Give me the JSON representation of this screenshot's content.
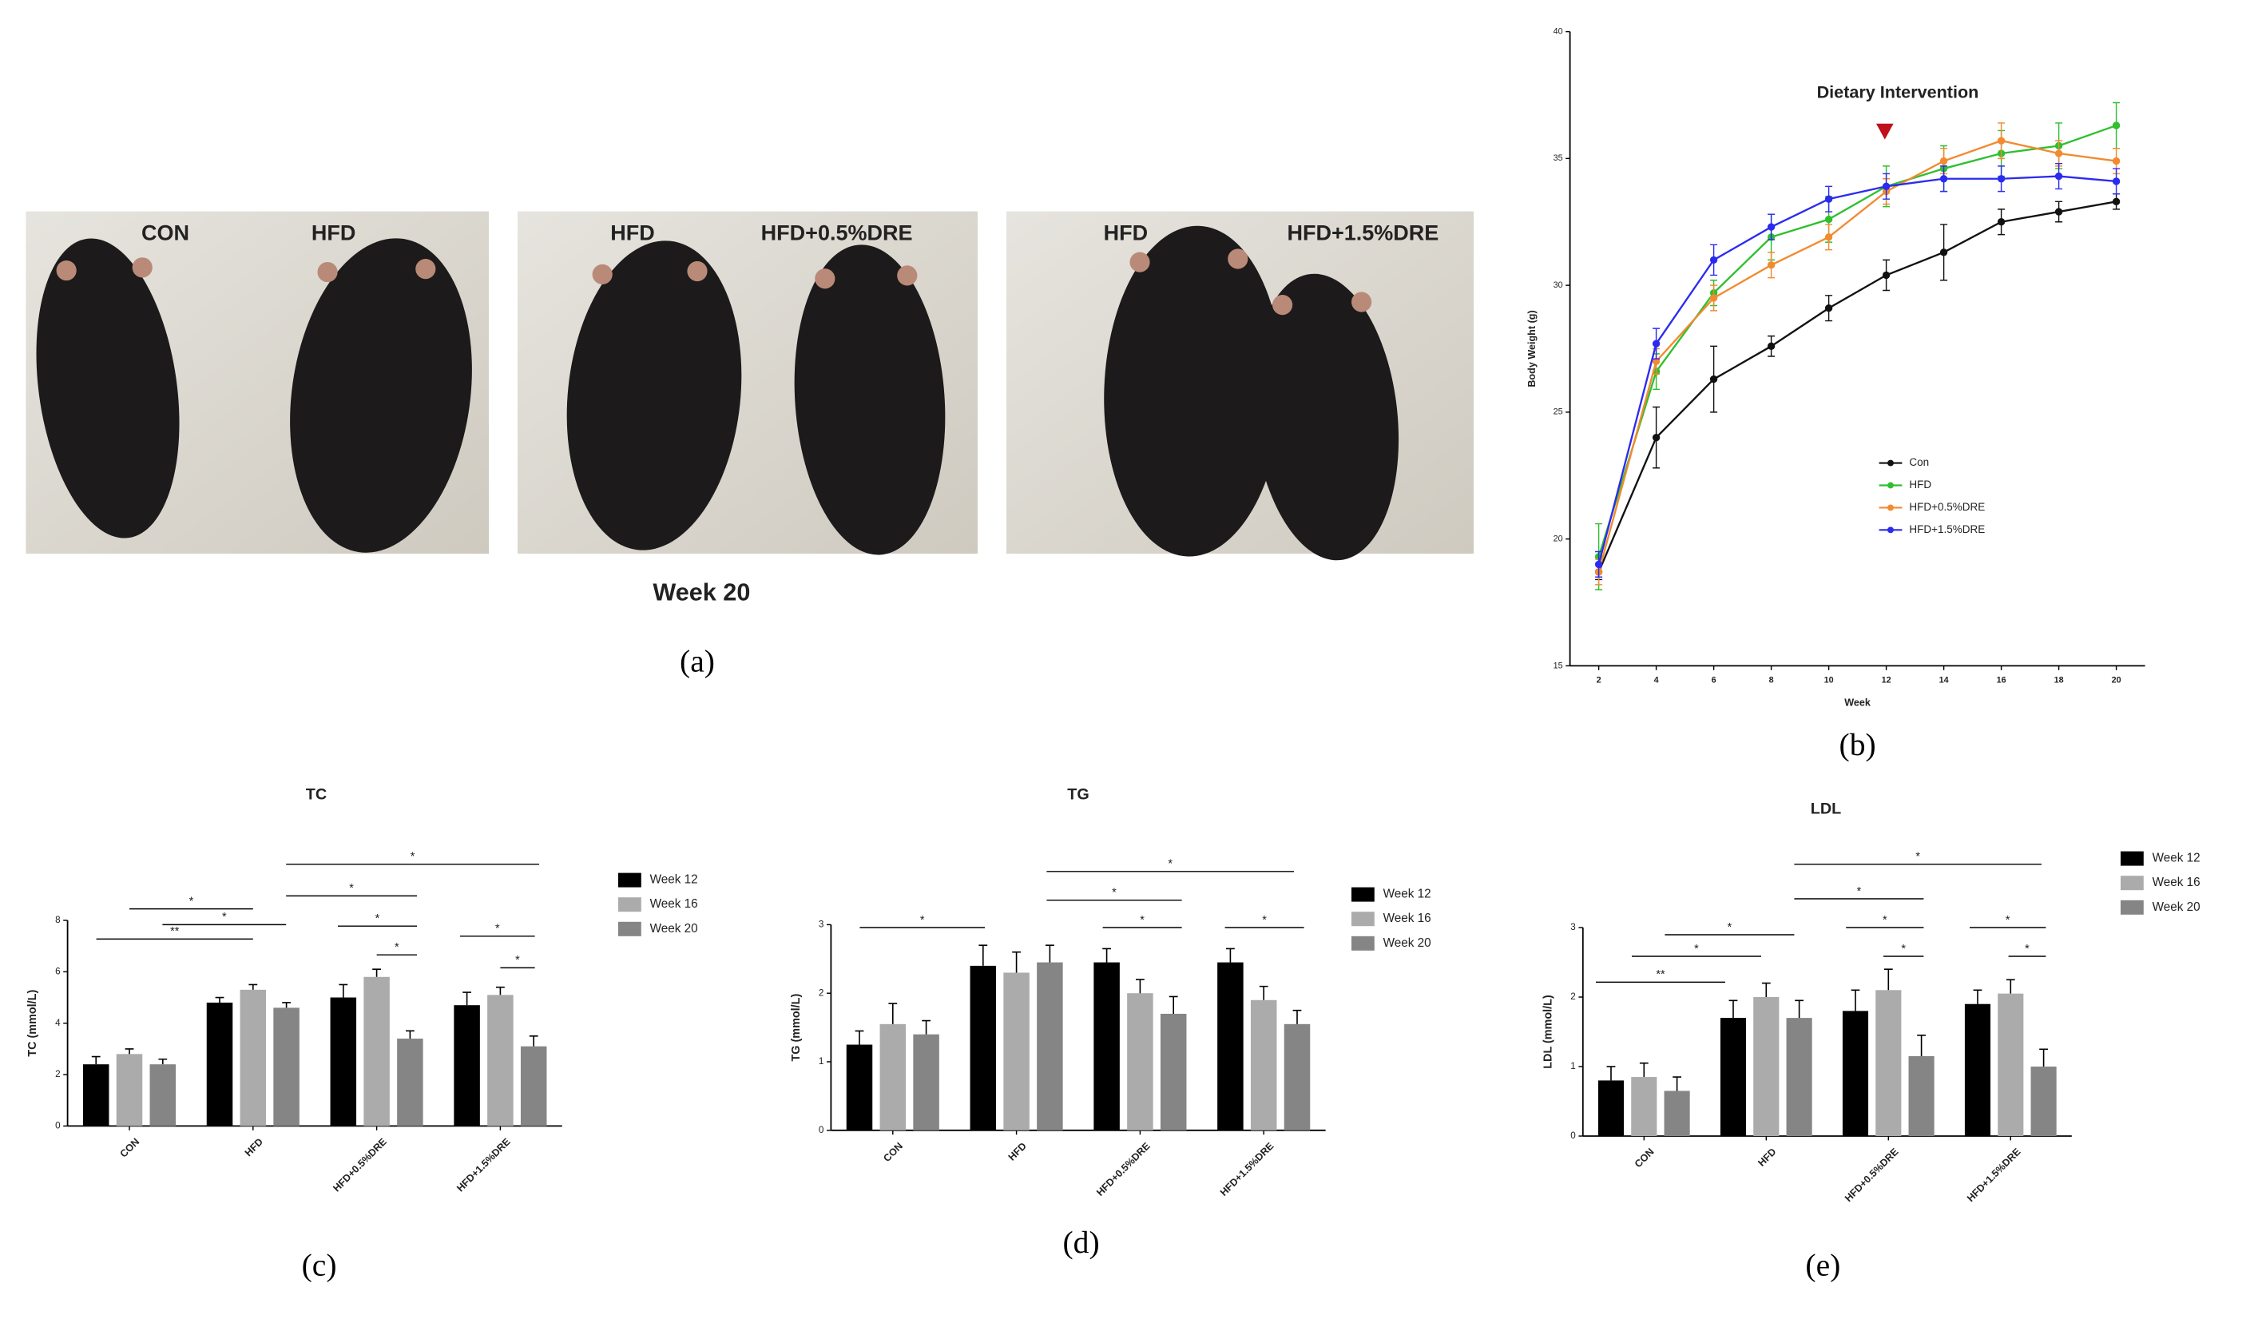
{
  "photo_panel": {
    "panel_label": "(a)",
    "caption": "Week 20",
    "photos": [
      {
        "labels": [
          "CON",
          "HFD"
        ]
      },
      {
        "labels": [
          "HFD",
          "HFD+0.5%DRE"
        ]
      },
      {
        "labels": [
          "HFD",
          "HFD+1.5%DRE"
        ]
      }
    ]
  },
  "chart_data": [
    {
      "type": "line",
      "panel_label": "(b)",
      "x_label": "Week",
      "y_label": "Body Weight (g)",
      "annotation": "Dietary Intervention",
      "x": [
        2,
        4,
        6,
        8,
        10,
        12,
        14,
        16,
        18,
        20
      ],
      "xlim": [
        1,
        21
      ],
      "xticks": [
        2,
        4,
        6,
        8,
        10,
        12,
        14,
        16,
        18,
        20
      ],
      "ylim": [
        15,
        40
      ],
      "yticks": [
        15,
        20,
        25,
        30,
        35,
        40
      ],
      "series": [
        {
          "name": "Con",
          "color": "#111111",
          "values": [
            18.7,
            24.0,
            26.3,
            27.6,
            29.1,
            30.4,
            31.3,
            32.5,
            32.9,
            33.3
          ],
          "errors": [
            0.3,
            1.2,
            1.3,
            0.4,
            0.5,
            0.6,
            1.1,
            0.5,
            0.4,
            0.3
          ]
        },
        {
          "name": "HFD",
          "color": "#2fbf2f",
          "values": [
            19.3,
            26.6,
            29.7,
            31.9,
            32.6,
            33.9,
            34.6,
            35.2,
            35.5,
            36.3
          ],
          "errors": [
            1.3,
            0.7,
            0.5,
            0.9,
            0.9,
            0.8,
            0.9,
            0.9,
            0.9,
            0.9
          ]
        },
        {
          "name": "HFD+0.5%DRE",
          "color": "#f28a30",
          "values": [
            18.7,
            27.0,
            29.5,
            30.8,
            31.9,
            33.7,
            34.9,
            35.7,
            35.2,
            34.9
          ],
          "errors": [
            0.5,
            0.5,
            0.5,
            0.5,
            0.5,
            0.5,
            0.5,
            0.7,
            0.5,
            0.5
          ]
        },
        {
          "name": "HFD+1.5%DRE",
          "color": "#2b2bef",
          "values": [
            19.0,
            27.7,
            31.0,
            32.3,
            33.4,
            33.9,
            34.2,
            34.2,
            34.3,
            34.1
          ],
          "errors": [
            0.5,
            0.6,
            0.6,
            0.5,
            0.5,
            0.5,
            0.5,
            0.5,
            0.5,
            0.5
          ]
        }
      ]
    },
    {
      "type": "bar",
      "panel_label": "(c)",
      "title": "TC",
      "y_label": "TC (mmol/L)",
      "categories": [
        "CON",
        "HFD",
        "HFD+0.5%DRE",
        "HFD+1.5%DRE"
      ],
      "ylim": [
        0,
        8
      ],
      "yticks": [
        0,
        2,
        4,
        6,
        8
      ],
      "series": [
        {
          "name": "Week 12",
          "color": "#000000",
          "values": [
            2.4,
            4.8,
            5.0,
            4.7
          ],
          "errors": [
            0.3,
            0.2,
            0.5,
            0.5
          ]
        },
        {
          "name": "Week 16",
          "color": "#ababab",
          "values": [
            2.8,
            5.3,
            5.8,
            5.1
          ],
          "errors": [
            0.2,
            0.2,
            0.3,
            0.3
          ]
        },
        {
          "name": "Week 20",
          "color": "#858585",
          "values": [
            2.4,
            4.6,
            3.4,
            3.1
          ],
          "errors": [
            0.2,
            0.2,
            0.3,
            0.4
          ]
        }
      ],
      "significance": [
        "**",
        "*",
        "*",
        "*",
        "*",
        "*",
        "*",
        "*",
        "*"
      ]
    },
    {
      "type": "bar",
      "panel_label": "(d)",
      "title": "TG",
      "y_label": "TG (mmol/L)",
      "categories": [
        "CON",
        "HFD",
        "HFD+0.5%DRE",
        "HFD+1.5%DRE"
      ],
      "ylim": [
        0,
        3
      ],
      "yticks": [
        0,
        1,
        2,
        3
      ],
      "series": [
        {
          "name": "Week 12",
          "color": "#000000",
          "values": [
            1.25,
            2.4,
            2.45,
            2.45
          ],
          "errors": [
            0.2,
            0.3,
            0.2,
            0.2
          ]
        },
        {
          "name": "Week 16",
          "color": "#ababab",
          "values": [
            1.55,
            2.3,
            2.0,
            1.9
          ],
          "errors": [
            0.3,
            0.3,
            0.2,
            0.2
          ]
        },
        {
          "name": "Week 20",
          "color": "#858585",
          "values": [
            1.4,
            2.45,
            1.7,
            1.55
          ],
          "errors": [
            0.2,
            0.25,
            0.25,
            0.2
          ]
        }
      ],
      "significance": [
        "*",
        "*",
        "*",
        "*",
        "*"
      ]
    },
    {
      "type": "bar",
      "panel_label": "(e)",
      "title": "LDL",
      "y_label": "LDL (mmol/L)",
      "categories": [
        "CON",
        "HFD",
        "HFD+0.5%DRE",
        "HFD+1.5%DRE"
      ],
      "ylim": [
        0,
        3
      ],
      "yticks": [
        0,
        1,
        2,
        3
      ],
      "series": [
        {
          "name": "Week 12",
          "color": "#000000",
          "values": [
            0.8,
            1.7,
            1.8,
            1.9
          ],
          "errors": [
            0.2,
            0.25,
            0.3,
            0.2
          ]
        },
        {
          "name": "Week 16",
          "color": "#ababab",
          "values": [
            0.85,
            2.0,
            2.1,
            2.05
          ],
          "errors": [
            0.2,
            0.2,
            0.3,
            0.2
          ]
        },
        {
          "name": "Week 20",
          "color": "#858585",
          "values": [
            0.65,
            1.7,
            1.15,
            1.0
          ],
          "errors": [
            0.2,
            0.25,
            0.3,
            0.25
          ]
        }
      ],
      "significance": [
        "**",
        "*",
        "*",
        "*",
        "*",
        "*",
        "*",
        "*",
        "*"
      ]
    }
  ]
}
